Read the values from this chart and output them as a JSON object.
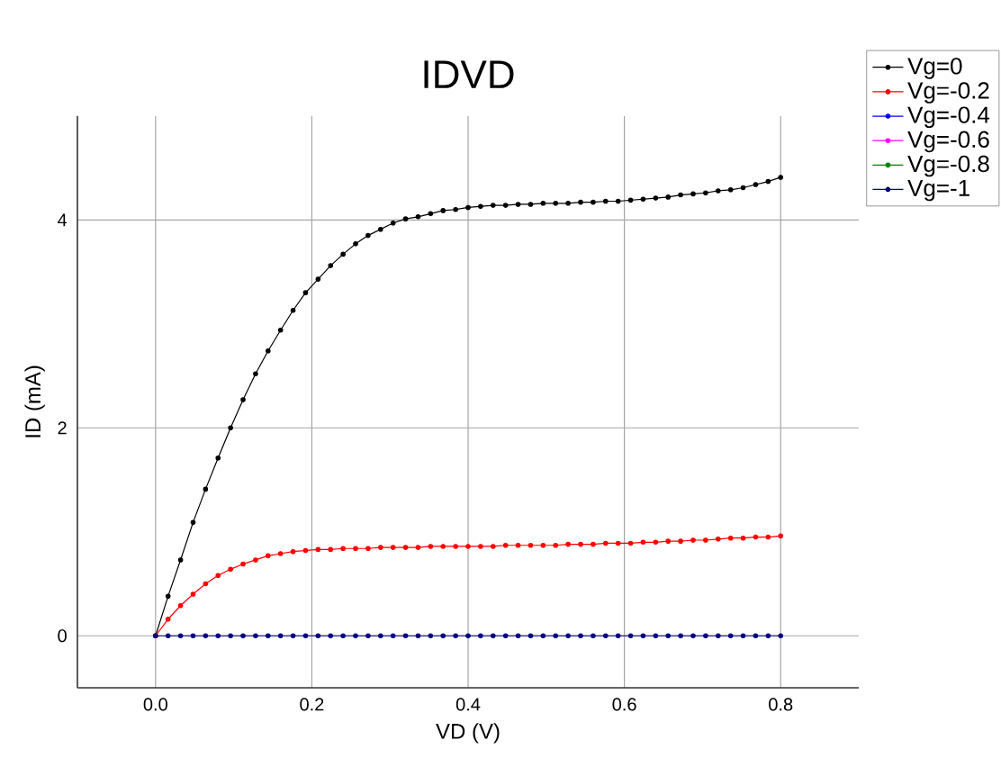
{
  "chart_data": {
    "type": "line",
    "title": "IDVD",
    "xlabel": "VD (V)",
    "ylabel": "ID (mA)",
    "x": [
      0,
      0.016,
      0.032,
      0.048,
      0.064,
      0.08,
      0.096,
      0.112,
      0.128,
      0.144,
      0.16,
      0.176,
      0.192,
      0.208,
      0.224,
      0.24,
      0.256,
      0.272,
      0.288,
      0.304,
      0.32,
      0.336,
      0.352,
      0.368,
      0.384,
      0.4,
      0.416,
      0.432,
      0.448,
      0.464,
      0.48,
      0.496,
      0.512,
      0.528,
      0.544,
      0.56,
      0.576,
      0.592,
      0.608,
      0.624,
      0.64,
      0.656,
      0.672,
      0.688,
      0.704,
      0.72,
      0.736,
      0.752,
      0.768,
      0.784,
      0.8
    ],
    "series": [
      {
        "name": "Vg=0",
        "color": "#000000",
        "values": [
          0,
          0.38,
          0.73,
          1.09,
          1.41,
          1.71,
          2.0,
          2.27,
          2.52,
          2.74,
          2.94,
          3.13,
          3.3,
          3.43,
          3.56,
          3.67,
          3.77,
          3.85,
          3.91,
          3.97,
          4.01,
          4.03,
          4.06,
          4.09,
          4.1,
          4.12,
          4.13,
          4.14,
          4.14,
          4.15,
          4.15,
          4.16,
          4.16,
          4.16,
          4.17,
          4.17,
          4.18,
          4.18,
          4.19,
          4.2,
          4.21,
          4.22,
          4.24,
          4.25,
          4.26,
          4.28,
          4.29,
          4.31,
          4.34,
          4.37,
          4.41
        ]
      },
      {
        "name": "Vg=-0.2",
        "color": "#ff0000",
        "values": [
          0,
          0.16,
          0.29,
          0.4,
          0.5,
          0.58,
          0.64,
          0.69,
          0.73,
          0.77,
          0.79,
          0.81,
          0.82,
          0.83,
          0.83,
          0.84,
          0.84,
          0.84,
          0.85,
          0.85,
          0.85,
          0.85,
          0.86,
          0.86,
          0.86,
          0.86,
          0.86,
          0.86,
          0.87,
          0.87,
          0.87,
          0.87,
          0.87,
          0.88,
          0.88,
          0.88,
          0.89,
          0.89,
          0.89,
          0.9,
          0.9,
          0.91,
          0.91,
          0.92,
          0.92,
          0.93,
          0.94,
          0.94,
          0.95,
          0.95,
          0.96
        ]
      },
      {
        "name": "Vg=-0.4",
        "color": "#0000ff",
        "values": [
          null,
          null,
          null,
          null,
          null,
          null,
          null,
          null,
          null,
          null,
          null,
          null,
          null,
          null,
          null,
          null,
          null,
          null,
          null,
          null,
          null,
          null,
          null,
          null,
          null,
          null,
          null,
          null,
          null,
          null,
          null,
          null,
          null,
          null,
          null,
          null,
          null,
          null,
          null,
          null,
          null,
          null,
          null,
          null,
          null,
          null,
          null,
          null,
          null,
          null,
          null
        ]
      },
      {
        "name": "Vg=-0.6",
        "color": "#ff00ff",
        "values": [
          null,
          null,
          null,
          null,
          null,
          null,
          null,
          null,
          null,
          null,
          null,
          null,
          null,
          null,
          null,
          null,
          null,
          null,
          null,
          null,
          null,
          null,
          null,
          null,
          null,
          null,
          null,
          null,
          null,
          null,
          null,
          null,
          null,
          null,
          null,
          null,
          null,
          null,
          null,
          null,
          null,
          null,
          null,
          null,
          null,
          null,
          null,
          null,
          null,
          null,
          null
        ]
      },
      {
        "name": "Vg=-0.8",
        "color": "#008000",
        "values": [
          null,
          null,
          null,
          null,
          null,
          null,
          null,
          null,
          null,
          null,
          null,
          null,
          null,
          null,
          null,
          null,
          null,
          null,
          null,
          null,
          null,
          null,
          null,
          null,
          null,
          null,
          null,
          null,
          null,
          null,
          null,
          null,
          null,
          null,
          null,
          null,
          null,
          null,
          null,
          null,
          null,
          null,
          null,
          null,
          null,
          null,
          null,
          null,
          null,
          null,
          null
        ]
      },
      {
        "name": "Vg=-1",
        "color": "#000080",
        "values": [
          0,
          0,
          0,
          0,
          0,
          0,
          0,
          0,
          0,
          0,
          0,
          0,
          0,
          0,
          0,
          0,
          0,
          0,
          0,
          0,
          0,
          0,
          0,
          0,
          0,
          0,
          0,
          0,
          0,
          0,
          0,
          0,
          0,
          0,
          0,
          0,
          0,
          0,
          0,
          0,
          0,
          0,
          0,
          0,
          0,
          0,
          0,
          0,
          0,
          0,
          0
        ]
      }
    ],
    "xlim": [
      -0.1,
      0.9
    ],
    "ylim": [
      -0.5,
      5
    ],
    "xticks": [
      {
        "value": 0,
        "label": "0.0"
      },
      {
        "value": 0.2,
        "label": "0.2"
      },
      {
        "value": 0.4,
        "label": "0.4"
      },
      {
        "value": 0.6,
        "label": "0.6"
      },
      {
        "value": 0.8,
        "label": "0.8"
      }
    ],
    "yticks": [
      0,
      2,
      4
    ],
    "grid": true,
    "legend": "top right",
    "marker": "circle",
    "line_style": "solid"
  }
}
